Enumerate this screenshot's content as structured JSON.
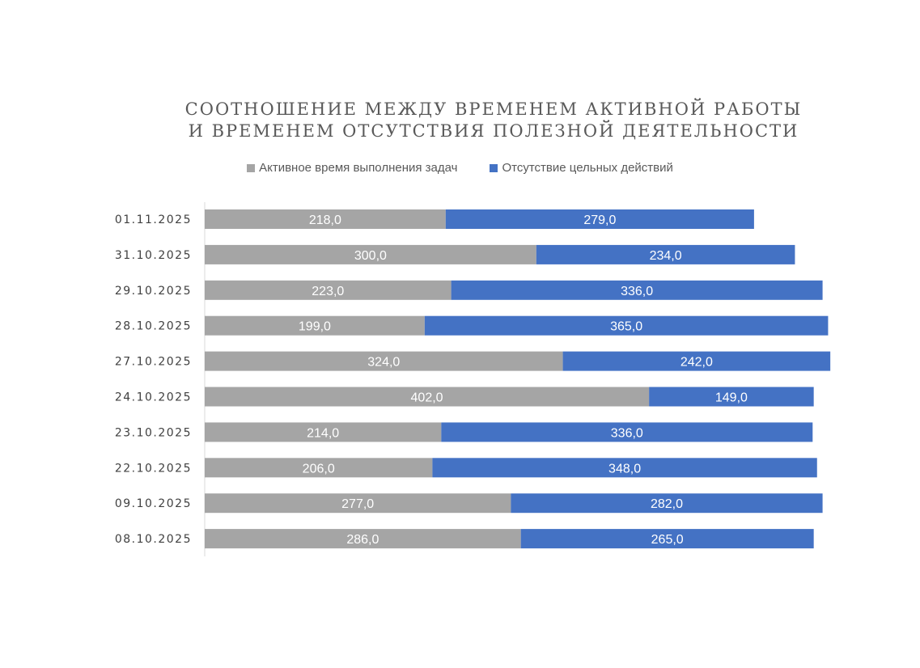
{
  "chart_data": {
    "type": "bar",
    "orientation": "horizontal",
    "stacked": true,
    "title_lines": [
      "СООТНОШЕНИЕ МЕЖДУ ВРЕМЕНЕМ АКТИВНОЙ РАБОТЫ",
      "И ВРЕМЕНЕМ ОТСУТСТВИЯ ПОЛЕЗНОЙ ДЕЯТЕЛЬНОСТИ"
    ],
    "legend_position": "top",
    "grid": false,
    "xlim": [
      0,
      600
    ],
    "categories": [
      "01.11.2025",
      "31.10.2025",
      "29.10.2025",
      "28.10.2025",
      "27.10.2025",
      "24.10.2025",
      "23.10.2025",
      "22.10.2025",
      "09.10.2025",
      "08.10.2025"
    ],
    "series": [
      {
        "name": "Активное время выполнения задач",
        "color": "#a5a5a5",
        "values": [
          218,
          300,
          223,
          199,
          324,
          402,
          214,
          206,
          277,
          286
        ],
        "labels": [
          "218,0",
          "300,0",
          "223,0",
          "199,0",
          "324,0",
          "402,0",
          "214,0",
          "206,0",
          "277,0",
          "286,0"
        ]
      },
      {
        "name": "Отсутствие цельных действий",
        "color": "#4472c4",
        "values": [
          279,
          234,
          336,
          365,
          242,
          149,
          336,
          348,
          282,
          265
        ],
        "labels": [
          "279,0",
          "234,0",
          "336,0",
          "365,0",
          "242,0",
          "149,0",
          "336,0",
          "348,0",
          "282,0",
          "265,0"
        ]
      }
    ]
  }
}
